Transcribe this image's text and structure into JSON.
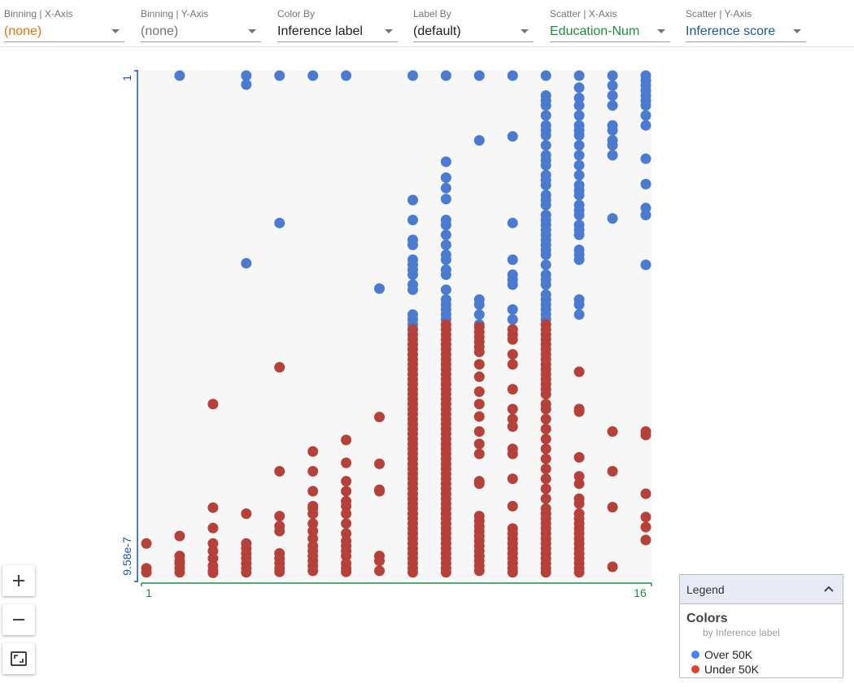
{
  "toolbar": {
    "binning_x": {
      "label": "Binning | X-Axis",
      "value": "(none)",
      "color": "#e8710a"
    },
    "binning_y": {
      "label": "Binning | Y-Axis",
      "value": "(none)",
      "color": "#757575"
    },
    "color_by": {
      "label": "Color By",
      "value": "Inference label",
      "color": "#212121"
    },
    "label_by": {
      "label": "Label By",
      "value": "(default)",
      "color": "#212121"
    },
    "scatter_x": {
      "label": "Scatter | X-Axis",
      "value": "Education-Num",
      "color": "#1e8e3e"
    },
    "scatter_y": {
      "label": "Scatter | Y-Axis",
      "value": "Inference score",
      "color": "#1a56b0"
    }
  },
  "zoom": {
    "in_icon": "plus-icon",
    "out_icon": "minus-icon",
    "fit_icon": "fit-to-screen-icon"
  },
  "legend": {
    "header": "Legend",
    "collapse_icon": "chevron-up-icon",
    "section": "Colors",
    "subtitle": "by Inference label",
    "items": [
      {
        "label": "Over 50K",
        "color": "#4285f4"
      },
      {
        "label": "Under 50K",
        "color": "#db4437"
      }
    ]
  },
  "chart_data": {
    "type": "scatter",
    "title": "",
    "xlabel": "",
    "ylabel": "",
    "x_tick_labels": [
      "1",
      "16"
    ],
    "y_tick_labels": [
      "9.58e-7",
      "1"
    ],
    "xlim": [
      1,
      16
    ],
    "ylim": [
      0,
      1
    ],
    "grid": false,
    "colors": {
      "over": "#4a7bd0",
      "under": "#b5413a",
      "x_axis": "#1e8e3e",
      "y_axis": "#1a56b0",
      "plot_bg": "#f7f7f7"
    },
    "series": [
      {
        "name": "Over 50K",
        "color": "over",
        "columns": [
          {
            "x": 2,
            "y": [
              1.0
            ]
          },
          {
            "x": 4,
            "y": [
              1.0,
              0.982,
              0.623
            ]
          },
          {
            "x": 5,
            "y": [
              1.0,
              0.704
            ]
          },
          {
            "x": 6,
            "y": [
              1.0
            ]
          },
          {
            "x": 7,
            "y": [
              1.0
            ]
          },
          {
            "x": 8,
            "y": [
              0.572
            ]
          },
          {
            "x": 9,
            "y": [
              1.0,
              0.75,
              0.71,
              0.67,
              0.66,
              0.63,
              0.62,
              0.61,
              0.6,
              0.58,
              0.57,
              0.52,
              0.51,
              0.5
            ]
          },
          {
            "x": 10,
            "y": [
              1.0,
              0.827,
              0.795,
              0.774,
              0.752,
              0.71,
              0.7,
              0.68,
              0.66,
              0.64,
              0.63,
              0.61,
              0.6,
              0.57,
              0.55,
              0.54,
              0.53,
              0.52,
              0.51
            ]
          },
          {
            "x": 11,
            "y": [
              1.0,
              0.87,
              0.55,
              0.54,
              0.52,
              0.5
            ]
          },
          {
            "x": 12,
            "y": [
              1.0,
              0.878,
              0.704,
              0.63,
              0.6,
              0.59,
              0.58,
              0.53,
              0.51
            ]
          },
          {
            "x": 13,
            "y": [
              1.0,
              0.96,
              0.95,
              0.94,
              0.92,
              0.9,
              0.89,
              0.88,
              0.86,
              0.84,
              0.83,
              0.82,
              0.8,
              0.79,
              0.78,
              0.76,
              0.75,
              0.74,
              0.72,
              0.71,
              0.7,
              0.69,
              0.68,
              0.67,
              0.66,
              0.65,
              0.64,
              0.62,
              0.6,
              0.59,
              0.58,
              0.56,
              0.55,
              0.54,
              0.53,
              0.52,
              0.51
            ]
          },
          {
            "x": 14,
            "y": [
              1.0,
              0.976,
              0.955,
              0.94,
              0.92,
              0.9,
              0.89,
              0.88,
              0.86,
              0.84,
              0.82,
              0.8,
              0.78,
              0.77,
              0.76,
              0.74,
              0.73,
              0.72,
              0.7,
              0.69,
              0.68,
              0.65,
              0.64,
              0.63,
              0.55,
              0.54,
              0.52
            ]
          },
          {
            "x": 15,
            "y": [
              1.0,
              0.98,
              0.96,
              0.94,
              0.9,
              0.89,
              0.87,
              0.86,
              0.84,
              0.713
            ]
          },
          {
            "x": 16,
            "y": [
              1.0,
              0.99,
              0.98,
              0.97,
              0.96,
              0.95,
              0.94,
              0.92,
              0.9,
              0.833,
              0.782,
              0.734,
              0.72,
              0.62
            ]
          }
        ]
      },
      {
        "name": "Under 50K",
        "color": "under",
        "columns": [
          {
            "x": 1,
            "y": [
              0.06,
              0.01,
              0.002
            ]
          },
          {
            "x": 2,
            "y": [
              0.075,
              0.035,
              0.025,
              0.02,
              0.01,
              0.002
            ]
          },
          {
            "x": 3,
            "y": [
              0.34,
              0.132,
              0.091,
              0.06,
              0.045,
              0.03,
              0.015,
              0.005,
              0.001
            ]
          },
          {
            "x": 4,
            "y": [
              0.12,
              0.06,
              0.05,
              0.04,
              0.03,
              0.02,
              0.01,
              0.002
            ]
          },
          {
            "x": 5,
            "y": [
              0.414,
              0.205,
              0.115,
              0.095,
              0.085,
              0.04,
              0.03,
              0.02,
              0.01,
              0.003
            ]
          },
          {
            "x": 6,
            "y": [
              0.245,
              0.205,
              0.165,
              0.135,
              0.13,
              0.12,
              0.1,
              0.085,
              0.07,
              0.055,
              0.045,
              0.035,
              0.025,
              0.015,
              0.005
            ]
          },
          {
            "x": 7,
            "y": [
              0.268,
              0.222,
              0.185,
              0.165,
              0.145,
              0.135,
              0.12,
              0.1,
              0.08,
              0.065,
              0.055,
              0.045,
              0.035,
              0.02,
              0.01,
              0.003
            ]
          },
          {
            "x": 8,
            "y": [
              0.314,
              0.22,
              0.168,
              0.165,
              0.035,
              0.025,
              0.005
            ]
          },
          {
            "x": 9,
            "y": [
              0.49,
              0.48,
              0.47,
              0.46,
              0.45,
              0.44,
              0.43,
              0.42,
              0.41,
              0.4,
              0.39,
              0.38,
              0.37,
              0.36,
              0.35,
              0.34,
              0.33,
              0.32,
              0.31,
              0.3,
              0.29,
              0.28,
              0.27,
              0.26,
              0.25,
              0.24,
              0.23,
              0.22,
              0.21,
              0.2,
              0.19,
              0.18,
              0.17,
              0.16,
              0.15,
              0.14,
              0.13,
              0.12,
              0.11,
              0.1,
              0.09,
              0.08,
              0.07,
              0.06,
              0.05,
              0.04,
              0.03,
              0.02,
              0.01,
              0.002
            ]
          },
          {
            "x": 10,
            "y": [
              0.5,
              0.49,
              0.48,
              0.47,
              0.46,
              0.45,
              0.44,
              0.43,
              0.42,
              0.41,
              0.4,
              0.39,
              0.38,
              0.37,
              0.36,
              0.35,
              0.34,
              0.33,
              0.32,
              0.31,
              0.3,
              0.29,
              0.28,
              0.27,
              0.26,
              0.25,
              0.24,
              0.23,
              0.22,
              0.21,
              0.2,
              0.19,
              0.18,
              0.17,
              0.16,
              0.15,
              0.14,
              0.13,
              0.12,
              0.11,
              0.1,
              0.09,
              0.08,
              0.07,
              0.06,
              0.05,
              0.04,
              0.03,
              0.02,
              0.01,
              0.002
            ]
          },
          {
            "x": 11,
            "y": [
              0.495,
              0.485,
              0.475,
              0.465,
              0.455,
              0.445,
              0.42,
              0.395,
              0.365,
              0.34,
              0.315,
              0.285,
              0.26,
              0.24,
              0.185,
              0.18,
              0.115,
              0.105,
              0.095,
              0.085,
              0.075,
              0.065,
              0.055,
              0.045,
              0.035,
              0.025,
              0.015,
              0.005
            ]
          },
          {
            "x": 12,
            "y": [
              0.49,
              0.48,
              0.47,
              0.44,
              0.42,
              0.37,
              0.33,
              0.31,
              0.295,
              0.25,
              0.24,
              0.19,
              0.135,
              0.09,
              0.08,
              0.07,
              0.06,
              0.05,
              0.04,
              0.03,
              0.02,
              0.01,
              0.002
            ]
          },
          {
            "x": 13,
            "y": [
              0.5,
              0.49,
              0.48,
              0.47,
              0.46,
              0.45,
              0.44,
              0.43,
              0.42,
              0.41,
              0.4,
              0.39,
              0.38,
              0.37,
              0.36,
              0.34,
              0.33,
              0.31,
              0.29,
              0.27,
              0.25,
              0.23,
              0.21,
              0.19,
              0.17,
              0.15,
              0.13,
              0.12,
              0.11,
              0.1,
              0.09,
              0.08,
              0.07,
              0.06,
              0.05,
              0.04,
              0.03,
              0.02,
              0.01,
              0.002
            ]
          },
          {
            "x": 14,
            "y": [
              0.405,
              0.33,
              0.325,
              0.233,
              0.195,
              0.18,
              0.15,
              0.14,
              0.12,
              0.11,
              0.1,
              0.09,
              0.08,
              0.07,
              0.06,
              0.05,
              0.04,
              0.03,
              0.02,
              0.01,
              0.002
            ]
          },
          {
            "x": 15,
            "y": [
              0.285,
              0.205,
              0.133,
              0.013
            ]
          },
          {
            "x": 16,
            "y": [
              0.285,
              0.278,
              0.16,
              0.113,
              0.093,
              0.067
            ]
          }
        ]
      }
    ]
  }
}
